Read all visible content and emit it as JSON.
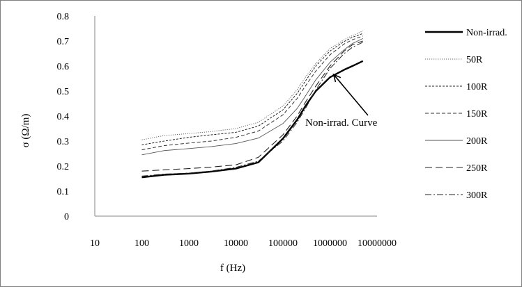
{
  "chart_data": {
    "type": "line",
    "xlabel": "f (Hz)",
    "ylabel": "σ (Ω/m)",
    "xscale": "log",
    "xlim": [
      10,
      10000000
    ],
    "ylim": [
      0,
      0.8
    ],
    "x_ticks": [
      "10",
      "100",
      "1000",
      "10000",
      "100000",
      "1000000",
      "10000000"
    ],
    "y_ticks": [
      "0",
      "0.1",
      "0.2",
      "0.3",
      "0.4",
      "0.5",
      "0.6",
      "0.7",
      "0.8"
    ],
    "grid": false,
    "legend_position": "right",
    "series": [
      {
        "name": "Non-irrad.",
        "style": "solid-thick",
        "x": [
          100,
          300,
          1000,
          3000,
          10000,
          30000,
          100000,
          200000,
          300000,
          500000,
          1000000,
          2000000,
          3000000,
          5000000
        ],
        "y": [
          0.155,
          0.165,
          0.17,
          0.178,
          0.19,
          0.215,
          0.31,
          0.385,
          0.44,
          0.5,
          0.555,
          0.585,
          0.6,
          0.62
        ]
      },
      {
        "name": "50R",
        "style": "dotted",
        "x": [
          100,
          300,
          1000,
          3000,
          10000,
          30000,
          100000,
          200000,
          300000,
          500000,
          1000000,
          2000000,
          3000000,
          5000000
        ],
        "y": [
          0.305,
          0.322,
          0.33,
          0.338,
          0.35,
          0.375,
          0.44,
          0.505,
          0.555,
          0.61,
          0.67,
          0.705,
          0.722,
          0.74
        ]
      },
      {
        "name": "100R",
        "style": "short-dash",
        "x": [
          100,
          300,
          1000,
          3000,
          10000,
          30000,
          100000,
          200000,
          300000,
          500000,
          1000000,
          2000000,
          3000000,
          5000000
        ],
        "y": [
          0.285,
          0.3,
          0.315,
          0.325,
          0.335,
          0.36,
          0.425,
          0.49,
          0.54,
          0.6,
          0.66,
          0.698,
          0.715,
          0.73
        ]
      },
      {
        "name": "150R",
        "style": "medium-dash",
        "x": [
          100,
          300,
          1000,
          3000,
          10000,
          30000,
          100000,
          200000,
          300000,
          500000,
          1000000,
          2000000,
          3000000,
          5000000
        ],
        "y": [
          0.265,
          0.282,
          0.292,
          0.3,
          0.315,
          0.34,
          0.405,
          0.47,
          0.52,
          0.58,
          0.645,
          0.688,
          0.705,
          0.72
        ]
      },
      {
        "name": "200R",
        "style": "thin-solid",
        "x": [
          100,
          300,
          1000,
          3000,
          10000,
          30000,
          100000,
          200000,
          300000,
          500000,
          1000000,
          2000000,
          3000000,
          5000000
        ],
        "y": [
          0.245,
          0.262,
          0.27,
          0.278,
          0.29,
          0.312,
          0.37,
          0.43,
          0.48,
          0.545,
          0.615,
          0.665,
          0.69,
          0.71
        ]
      },
      {
        "name": "250R",
        "style": "long-dash",
        "x": [
          100,
          300,
          1000,
          3000,
          10000,
          30000,
          100000,
          200000,
          300000,
          500000,
          1000000,
          2000000,
          3000000,
          5000000
        ],
        "y": [
          0.18,
          0.185,
          0.19,
          0.196,
          0.205,
          0.235,
          0.325,
          0.4,
          0.455,
          0.52,
          0.6,
          0.66,
          0.685,
          0.7
        ]
      },
      {
        "name": "300R",
        "style": "dash-dot",
        "x": [
          100,
          300,
          1000,
          3000,
          10000,
          30000,
          100000,
          200000,
          300000,
          500000,
          1000000,
          2000000,
          3000000,
          5000000
        ],
        "y": [
          0.16,
          0.168,
          0.172,
          0.18,
          0.195,
          0.22,
          0.3,
          0.375,
          0.43,
          0.505,
          0.59,
          0.65,
          0.675,
          0.695
        ]
      }
    ],
    "annotations": [
      {
        "text": "Non-irrad. Curve",
        "points_to": {
          "x": 1800000,
          "y": 0.58
        }
      }
    ]
  }
}
